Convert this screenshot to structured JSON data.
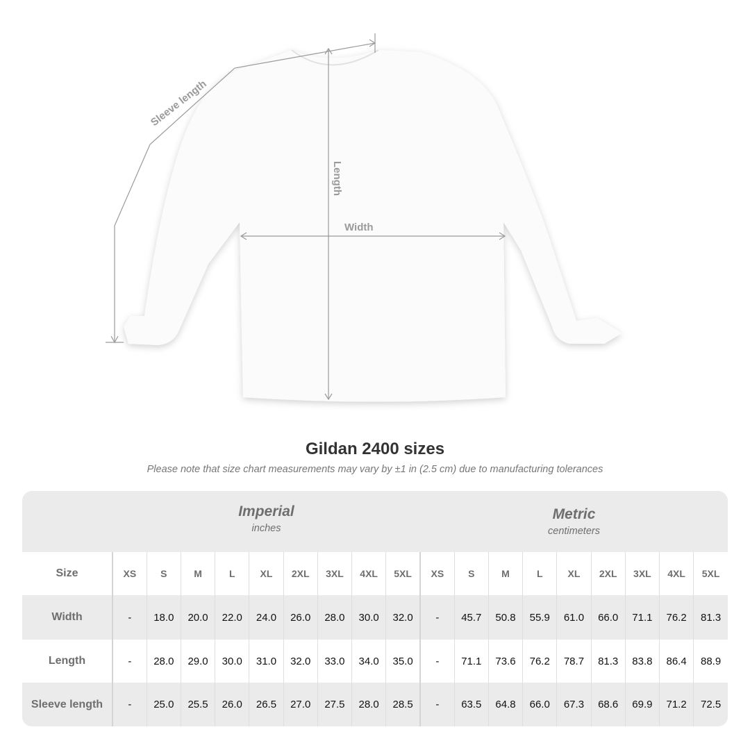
{
  "illustration": {
    "labels": {
      "sleeve": "Sleeve length",
      "length": "Length",
      "width": "Width"
    },
    "colors": {
      "line": "#9a9a9a",
      "shirt": "#fbfbfb"
    }
  },
  "title": "Gildan 2400 sizes",
  "note": "Please note that size chart measurements may vary by ±1 in (2.5 cm) due to manufacturing tolerances",
  "table": {
    "imperial": {
      "title": "Imperial",
      "unit": "inches"
    },
    "metric": {
      "title": "Metric",
      "unit": "centimeters"
    },
    "size_label": "Size",
    "sizes": [
      "XS",
      "S",
      "M",
      "L",
      "XL",
      "2XL",
      "3XL",
      "4XL",
      "5XL"
    ],
    "rows": [
      {
        "label": "Width",
        "imperial": [
          "-",
          "18.0",
          "20.0",
          "22.0",
          "24.0",
          "26.0",
          "28.0",
          "30.0",
          "32.0"
        ],
        "metric": [
          "-",
          "45.7",
          "50.8",
          "55.9",
          "61.0",
          "66.0",
          "71.1",
          "76.2",
          "81.3"
        ]
      },
      {
        "label": "Length",
        "imperial": [
          "-",
          "28.0",
          "29.0",
          "30.0",
          "31.0",
          "32.0",
          "33.0",
          "34.0",
          "35.0"
        ],
        "metric": [
          "-",
          "71.1",
          "73.6",
          "76.2",
          "78.7",
          "81.3",
          "83.8",
          "86.4",
          "88.9"
        ]
      },
      {
        "label": "Sleeve length",
        "imperial": [
          "-",
          "25.0",
          "25.5",
          "26.0",
          "26.5",
          "27.0",
          "27.5",
          "28.0",
          "28.5"
        ],
        "metric": [
          "-",
          "63.5",
          "64.8",
          "66.0",
          "67.3",
          "68.6",
          "69.9",
          "71.2",
          "72.5"
        ]
      }
    ]
  }
}
